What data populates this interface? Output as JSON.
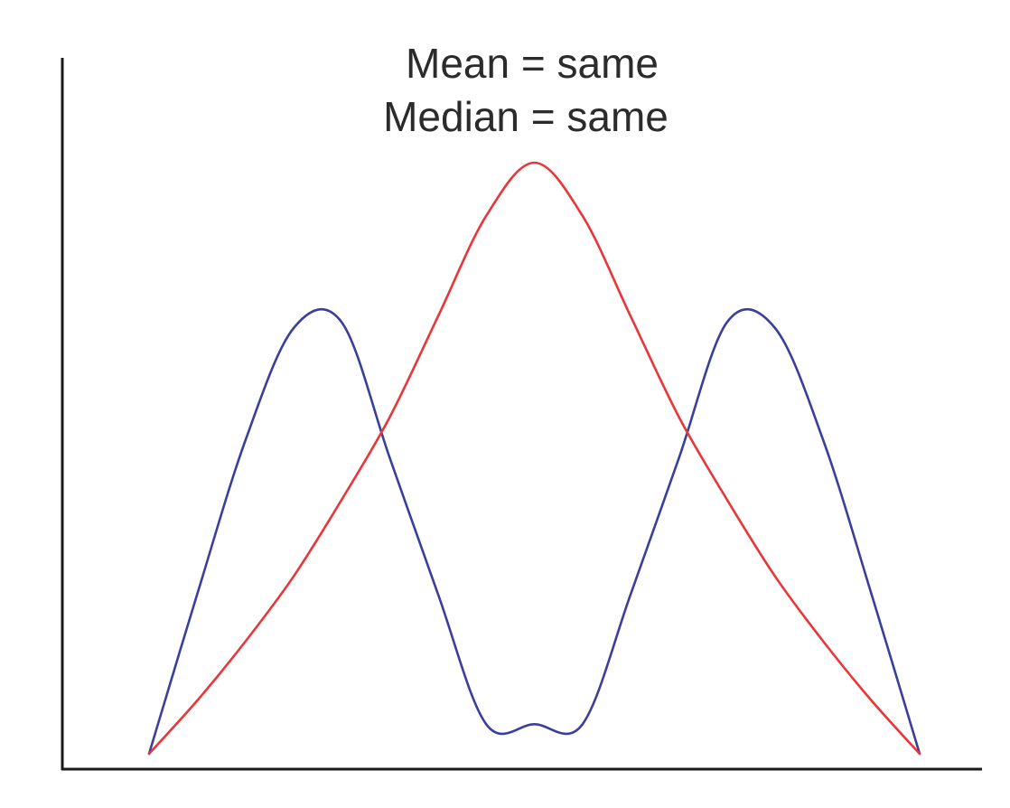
{
  "chart_data": {
    "type": "line",
    "title": [
      "Mean = same",
      "Median = same"
    ],
    "xlabel": "",
    "ylabel": "",
    "xlim": [
      -4,
      4
    ],
    "ylim": [
      0,
      1.1
    ],
    "grid": false,
    "series": [
      {
        "color": "#e8363a",
        "x": [
          -4,
          -3.5,
          -3,
          -2.5,
          -2,
          -1.5,
          -1,
          -0.5,
          0,
          0.5,
          1,
          1.5,
          2,
          2.5,
          3,
          3.5,
          4
        ],
        "y": [
          0,
          0.09,
          0.19,
          0.3,
          0.43,
          0.57,
          0.74,
          0.91,
          1.0,
          0.91,
          0.74,
          0.57,
          0.43,
          0.3,
          0.19,
          0.09,
          0
        ]
      },
      {
        "color": "#3b3f9c",
        "x": [
          -4,
          -3.5,
          -3,
          -2.5,
          -2,
          -1.5,
          -1,
          -0.5,
          0,
          0.5,
          1,
          1.5,
          2,
          2.5,
          3,
          3.5,
          4
        ],
        "y": [
          0,
          0.27,
          0.53,
          0.72,
          0.73,
          0.5,
          0.27,
          0.05,
          0.05,
          0.05,
          0.27,
          0.5,
          0.73,
          0.72,
          0.53,
          0.27,
          0
        ]
      }
    ]
  }
}
